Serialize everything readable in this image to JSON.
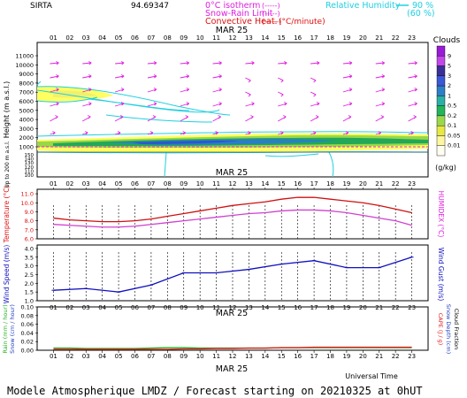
{
  "header": {
    "site": "SIRTA",
    "coords": "94.69347",
    "legend_left": [
      {
        "label": "0°C isotherm",
        "style": "(-----)",
        "color": "#e020e0"
      },
      {
        "label": "Snow-Rain Limit",
        "style": "(-----)",
        "color": "#e020e0"
      },
      {
        "label": "Convective Heat.",
        "style": "(——)",
        "color": "#e01010"
      }
    ],
    "conv_unit": "(°C/minute)",
    "legend_right": {
      "label": "Relative Humidity",
      "v1": "90 %",
      "v2": "(60 %)",
      "color": "#20d0e0"
    }
  },
  "footer": {
    "utc_label": "Universal Time",
    "model_line": "Modele Atmospherique LMDZ / Forecast starting on 20210325 at 0hUT"
  },
  "hours": [
    "01",
    "02",
    "03",
    "04",
    "05",
    "06",
    "07",
    "08",
    "09",
    "10",
    "11",
    "12",
    "13",
    "14",
    "15",
    "16",
    "17",
    "18",
    "19",
    "20",
    "21",
    "22",
    "23"
  ],
  "date_label": "MAR 25",
  "chart_data": [
    {
      "type": "heatmap",
      "panel": "clouds",
      "ylabel": "Height (m a.s.l.)",
      "ylabel2": "Up to 200 m a.s.l.",
      "yticks_upper": [
        "11000",
        "10000",
        "9000",
        "8000",
        "7000",
        "6000",
        "5000",
        "4000",
        "3000",
        "2000",
        "1000"
      ],
      "yticks_lower": [
        "150",
        "140",
        "130",
        "120",
        "110",
        "100"
      ],
      "colorbar": {
        "title": "Clouds",
        "unit": "(g/kg)",
        "ticks": [
          "9",
          "5",
          "3",
          "2",
          "1",
          "0.5",
          "0.2",
          "0.1",
          "0.05",
          "0.01"
        ],
        "colors": [
          "#9a1ad8",
          "#c246ec",
          "#3a2f9a",
          "#3b58d6",
          "#2d7fc6",
          "#2bb0a8",
          "#23b55a",
          "#9ad94c",
          "#e8e845",
          "#fff7a0",
          "#fffef0"
        ]
      },
      "wind_arrows": "magenta",
      "cloud_layers": [
        {
          "altitude_m": 6500,
          "hours": [
            1,
            7
          ],
          "max_gkg": 0.05
        },
        {
          "altitude_m": 1200,
          "hours": [
            1,
            23
          ],
          "max_gkg": 0.5
        }
      ]
    },
    {
      "type": "line",
      "panel": "temperature",
      "ylabel": "Temperature (°C)",
      "ylabel_right": "HUMIDEX (°C)",
      "yticks": [
        "11.0",
        "10.0",
        "9.0",
        "8.0",
        "7.0",
        "6.0"
      ],
      "ylim": [
        6,
        11.5
      ],
      "x": [
        1,
        2,
        3,
        4,
        5,
        6,
        7,
        8,
        9,
        10,
        11,
        12,
        13,
        14,
        15,
        16,
        17,
        18,
        19,
        20,
        21,
        22,
        23
      ],
      "series": [
        {
          "color": "#d01010",
          "values": [
            8.3,
            8.1,
            8.0,
            7.9,
            7.9,
            8.0,
            8.2,
            8.5,
            8.8,
            9.1,
            9.4,
            9.7,
            9.9,
            10.1,
            10.4,
            10.6,
            10.6,
            10.4,
            10.2,
            10.0,
            9.7,
            9.3,
            8.9
          ]
        },
        {
          "color": "#d040d0",
          "values": [
            7.6,
            7.5,
            7.4,
            7.3,
            7.3,
            7.4,
            7.6,
            7.8,
            8.0,
            8.2,
            8.4,
            8.6,
            8.8,
            8.9,
            9.1,
            9.2,
            9.2,
            9.1,
            8.9,
            8.6,
            8.3,
            8.0,
            7.5
          ]
        }
      ]
    },
    {
      "type": "line",
      "panel": "wind",
      "ylabel": "Wind Speed (m/s)",
      "ylabel_right": "Wind Gust (m/s)",
      "yticks": [
        "4.0",
        "3.5",
        "3.0",
        "2.5",
        "2.0",
        "1.5",
        "1.0"
      ],
      "ylim": [
        1.0,
        4.2
      ],
      "x": [
        1,
        3,
        5,
        7,
        9,
        11,
        13,
        15,
        17,
        19,
        21,
        23
      ],
      "series": [
        {
          "color": "#1010c0",
          "values": [
            1.6,
            1.7,
            1.5,
            1.9,
            2.6,
            2.6,
            2.8,
            3.1,
            3.3,
            2.9,
            2.9,
            3.5
          ]
        }
      ]
    },
    {
      "type": "line",
      "panel": "rain",
      "ylabel": "Rain (mm / hour)",
      "ylabel2": "Snow (cm / hour)",
      "ylabel_right": "CAPE (J / g)",
      "ylabel_right2": "Snow Depth (cm)",
      "ylabel_right3": "Cloud Fraction",
      "yticks": [
        "0.10",
        "0.08",
        "0.06",
        "0.04",
        "0.02",
        "0.00"
      ],
      "ylim": [
        0,
        0.1
      ],
      "x": [
        1,
        2,
        3,
        4,
        5,
        6,
        7,
        8,
        9,
        10,
        11,
        12,
        13,
        14,
        15,
        16,
        17,
        18,
        19,
        20,
        21,
        22,
        23
      ],
      "series": [
        {
          "color": "#20b020",
          "values": [
            0.005,
            0.005,
            0.004,
            0.004,
            0.004,
            0.004,
            0.005,
            0.006,
            0.006,
            0.005,
            0.005,
            0.005,
            0.005,
            0.005,
            0.006,
            0.006,
            0.006,
            0.006,
            0.006,
            0.006,
            0.006,
            0.006,
            0.006
          ]
        },
        {
          "color": "#e02020",
          "values": [
            0.002,
            0.002,
            0.002,
            0.002,
            0.002,
            0.002,
            0.002,
            0.002,
            0.003,
            0.003,
            0.004,
            0.004,
            0.005,
            0.005,
            0.006,
            0.006,
            0.007,
            0.007,
            0.007,
            0.007,
            0.007,
            0.007,
            0.007
          ]
        }
      ]
    }
  ]
}
